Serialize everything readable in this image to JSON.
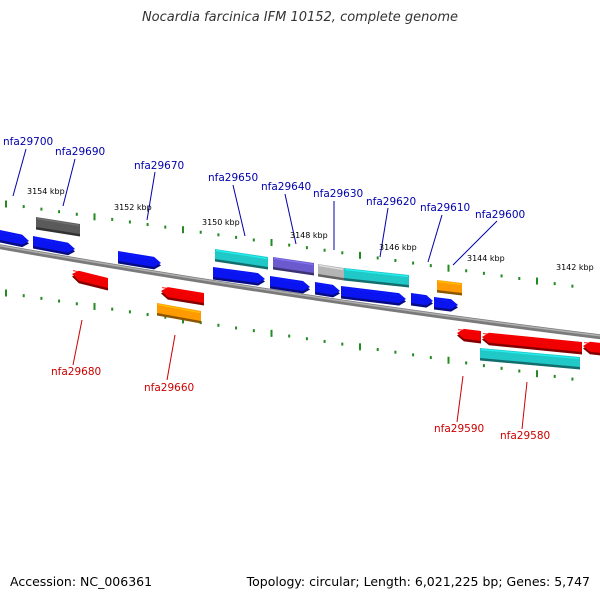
{
  "title": "Nocardia farcinica IFM 10152, complete genome",
  "footer": {
    "accession": "Accession: NC_006361",
    "stats": "Topology: circular; Length: 6,021,225 bp; Genes: 5,747"
  },
  "colors": {
    "blue": "#0a14f0",
    "red": "#f00000",
    "cyan": "#20c8c8",
    "purple": "#6a5acd",
    "gray": "#5a5a5a",
    "lightgray": "#b4b4b4",
    "orange": "#ff9a00",
    "label_top": "#0000aa",
    "label_bottom": "#cc0000",
    "tick": "#228b22",
    "backbone": "#8a8a8a"
  },
  "tick_labels": [
    "3154 kbp",
    "3152 kbp",
    "3150 kbp",
    "3148 kbp",
    "3146 kbp",
    "3144 kbp",
    "3142 kbp"
  ],
  "gene_labels_top": [
    "nfa29700",
    "nfa29690",
    "nfa29670",
    "nfa29650",
    "nfa29640",
    "nfa29630",
    "nfa29620",
    "nfa29610",
    "nfa29600"
  ],
  "gene_labels_bottom": [
    "nfa29680",
    "nfa29660",
    "nfa29590",
    "nfa29580"
  ]
}
